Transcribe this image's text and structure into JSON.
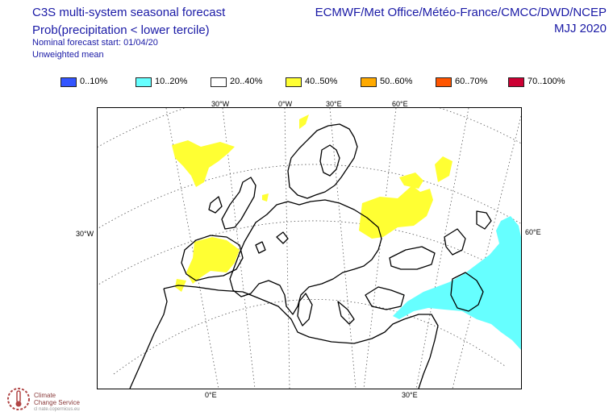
{
  "header": {
    "title": "C3S multi-system seasonal forecast",
    "subtitle": "Prob(precipitation < lower tercile)",
    "forecast_start": "Nominal forecast start: 01/04/20",
    "mean_type": "Unweighted mean",
    "centres": "ECMWF/Met Office/Météo-France/CMCC/DWD/NCEP",
    "period": "MJJ 2020"
  },
  "legend": [
    {
      "label": "0..10%",
      "color": "#3355ff"
    },
    {
      "label": "10..20%",
      "color": "#66ffff"
    },
    {
      "label": "20..40%",
      "color": "#ffffff"
    },
    {
      "label": "40..50%",
      "color": "#ffff33"
    },
    {
      "label": "50..60%",
      "color": "#ffaa00"
    },
    {
      "label": "60..70%",
      "color": "#ff5500"
    },
    {
      "label": "70..100%",
      "color": "#cc0033"
    }
  ],
  "map": {
    "projection": "polar stereographic",
    "top_lon_labels": [
      "30°W",
      "0°W",
      "30°E",
      "60°E"
    ],
    "bottom_lon_labels": [
      "0°E",
      "30°E"
    ],
    "left_lat_label": "30°W",
    "right_lat_label": "60°E",
    "coastline_color": "#000000",
    "gridline_style": "dotted"
  },
  "logo": {
    "text_line1": "Climate",
    "text_line2": "Change Service",
    "text_line3": "cl  nate.copernicus.eu"
  }
}
